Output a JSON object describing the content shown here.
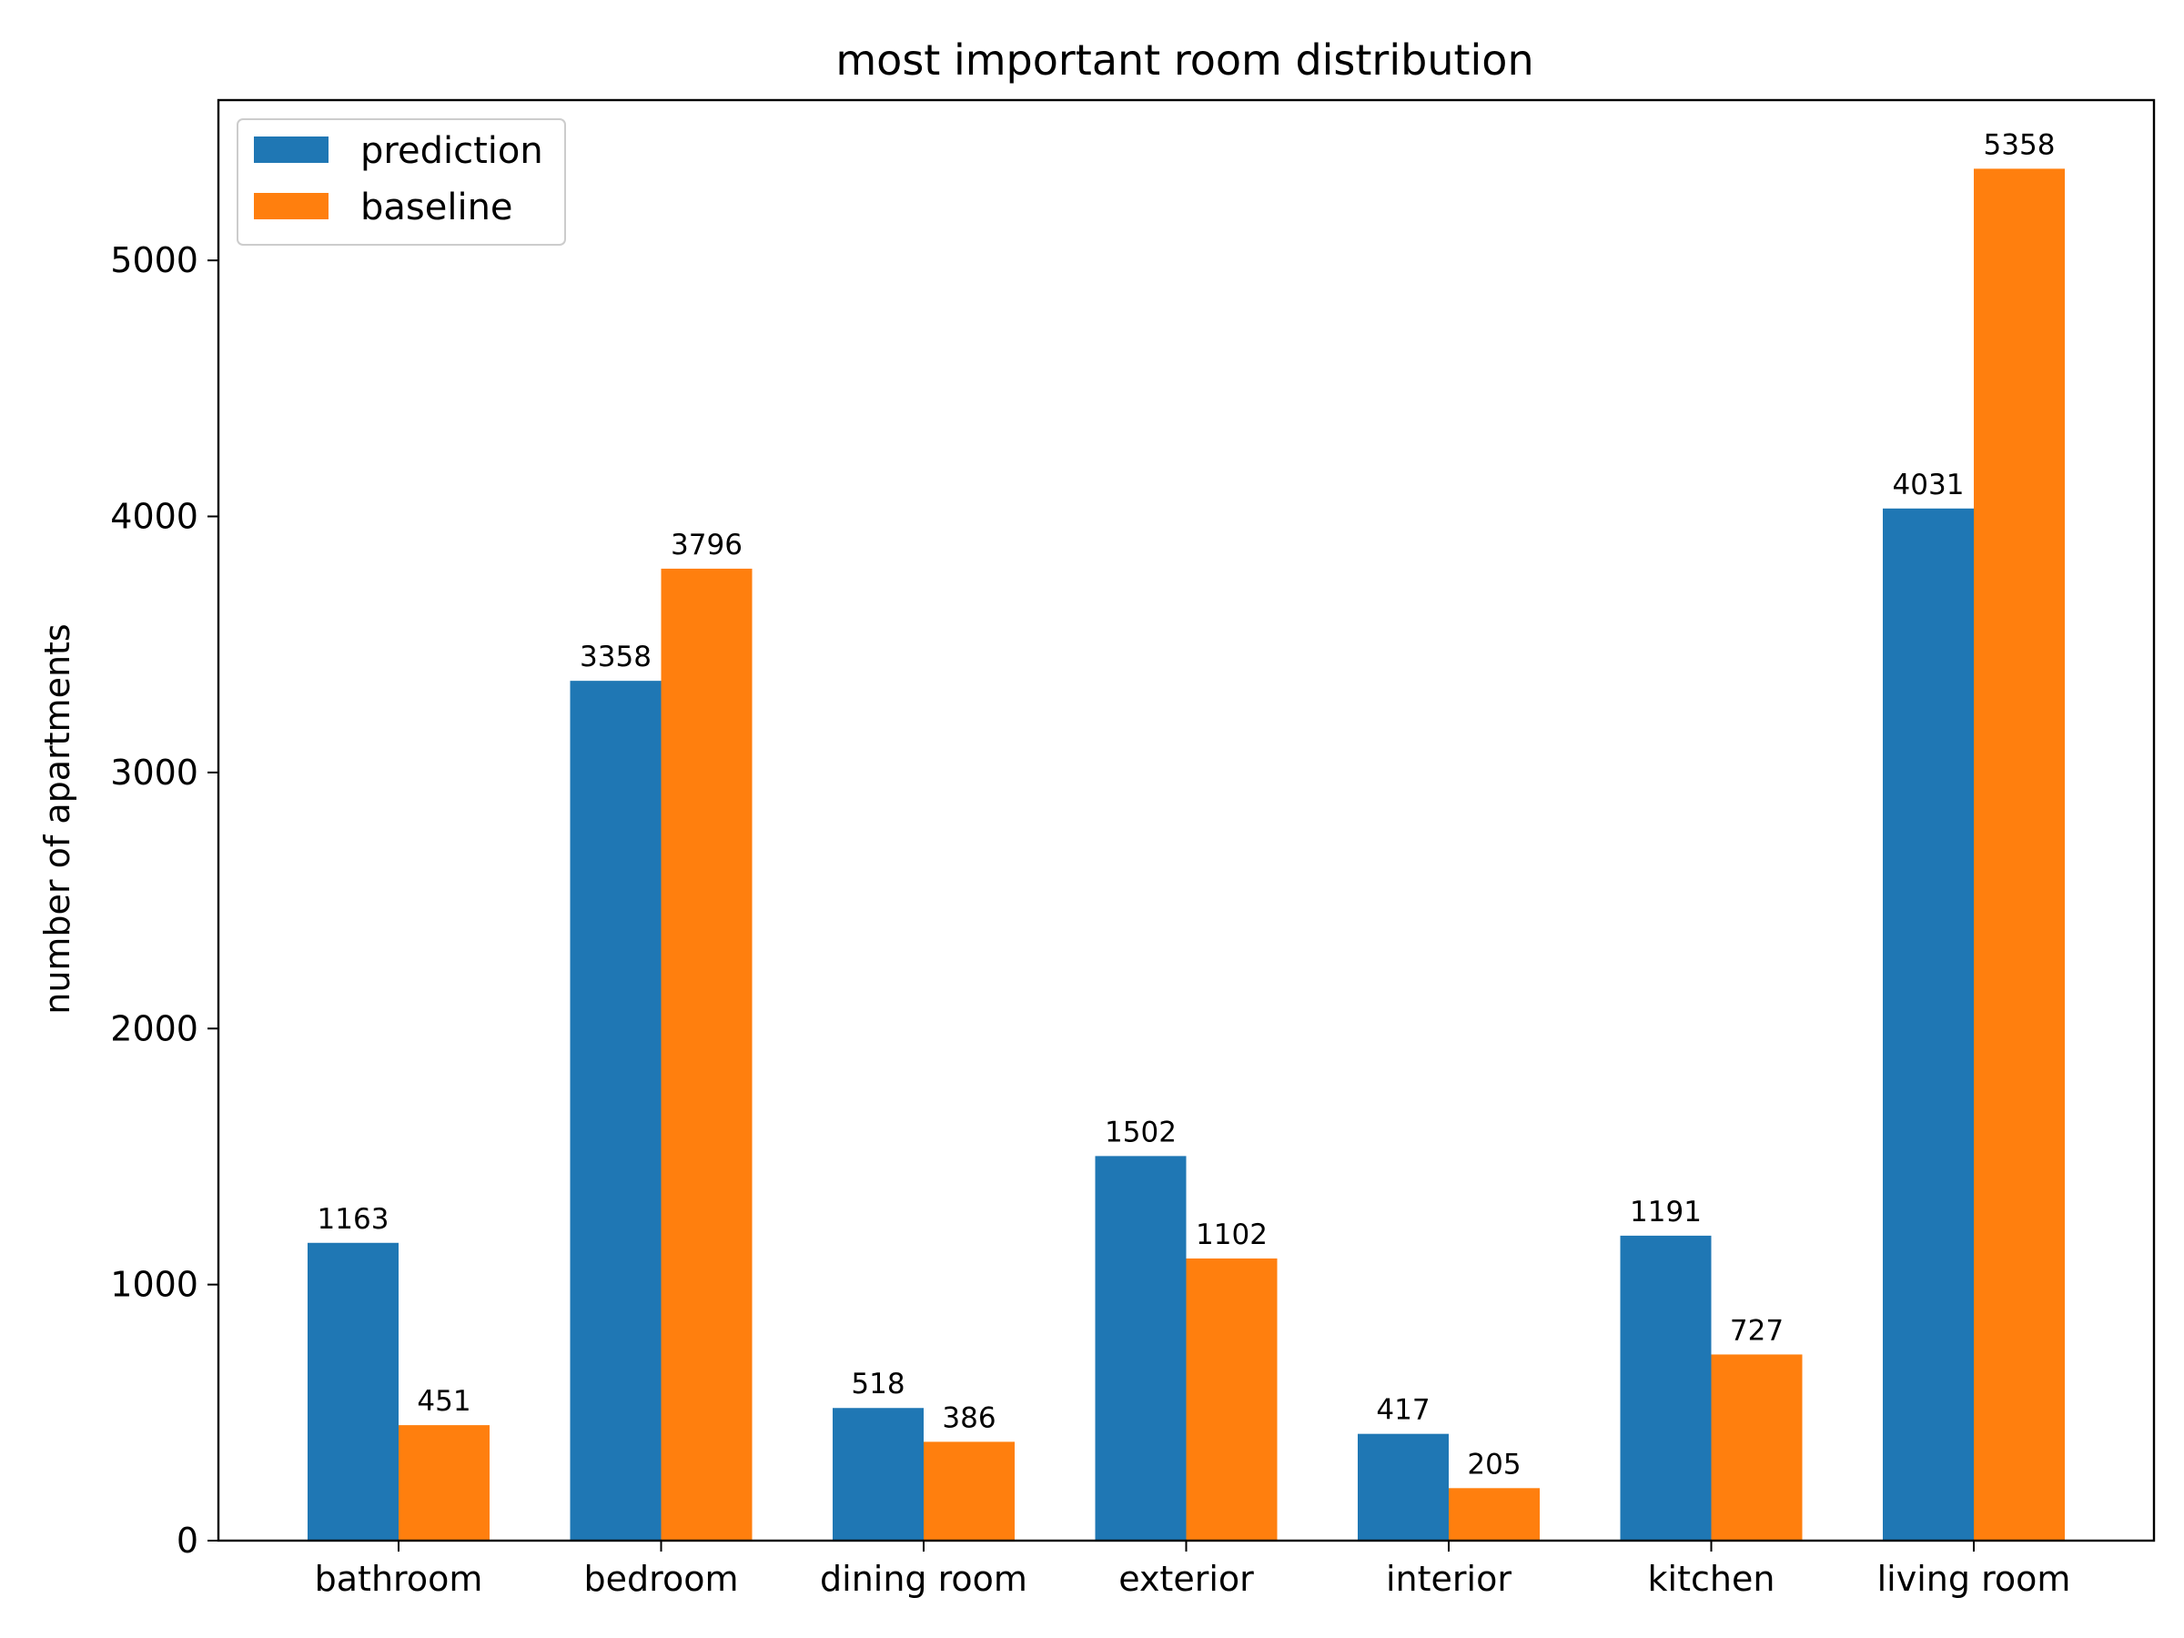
{
  "chart_data": {
    "type": "bar",
    "title": "most important room distribution",
    "xlabel": "",
    "ylabel": "number of apartments",
    "categories": [
      "bathroom",
      "bedroom",
      "dining room",
      "exterior",
      "interior",
      "kitchen",
      "living room"
    ],
    "series": [
      {
        "name": "prediction",
        "color": "#1f77b4",
        "values": [
          1163,
          3358,
          518,
          1502,
          417,
          1191,
          4031
        ]
      },
      {
        "name": "baseline",
        "color": "#ff7f0e",
        "values": [
          451,
          3796,
          386,
          1102,
          205,
          727,
          5358
        ]
      }
    ],
    "ylim": [
      0,
      5626
    ],
    "yticks": [
      0,
      1000,
      2000,
      3000,
      4000,
      5000
    ],
    "grid": false,
    "legend_position": "top-left",
    "data_labels": true
  }
}
